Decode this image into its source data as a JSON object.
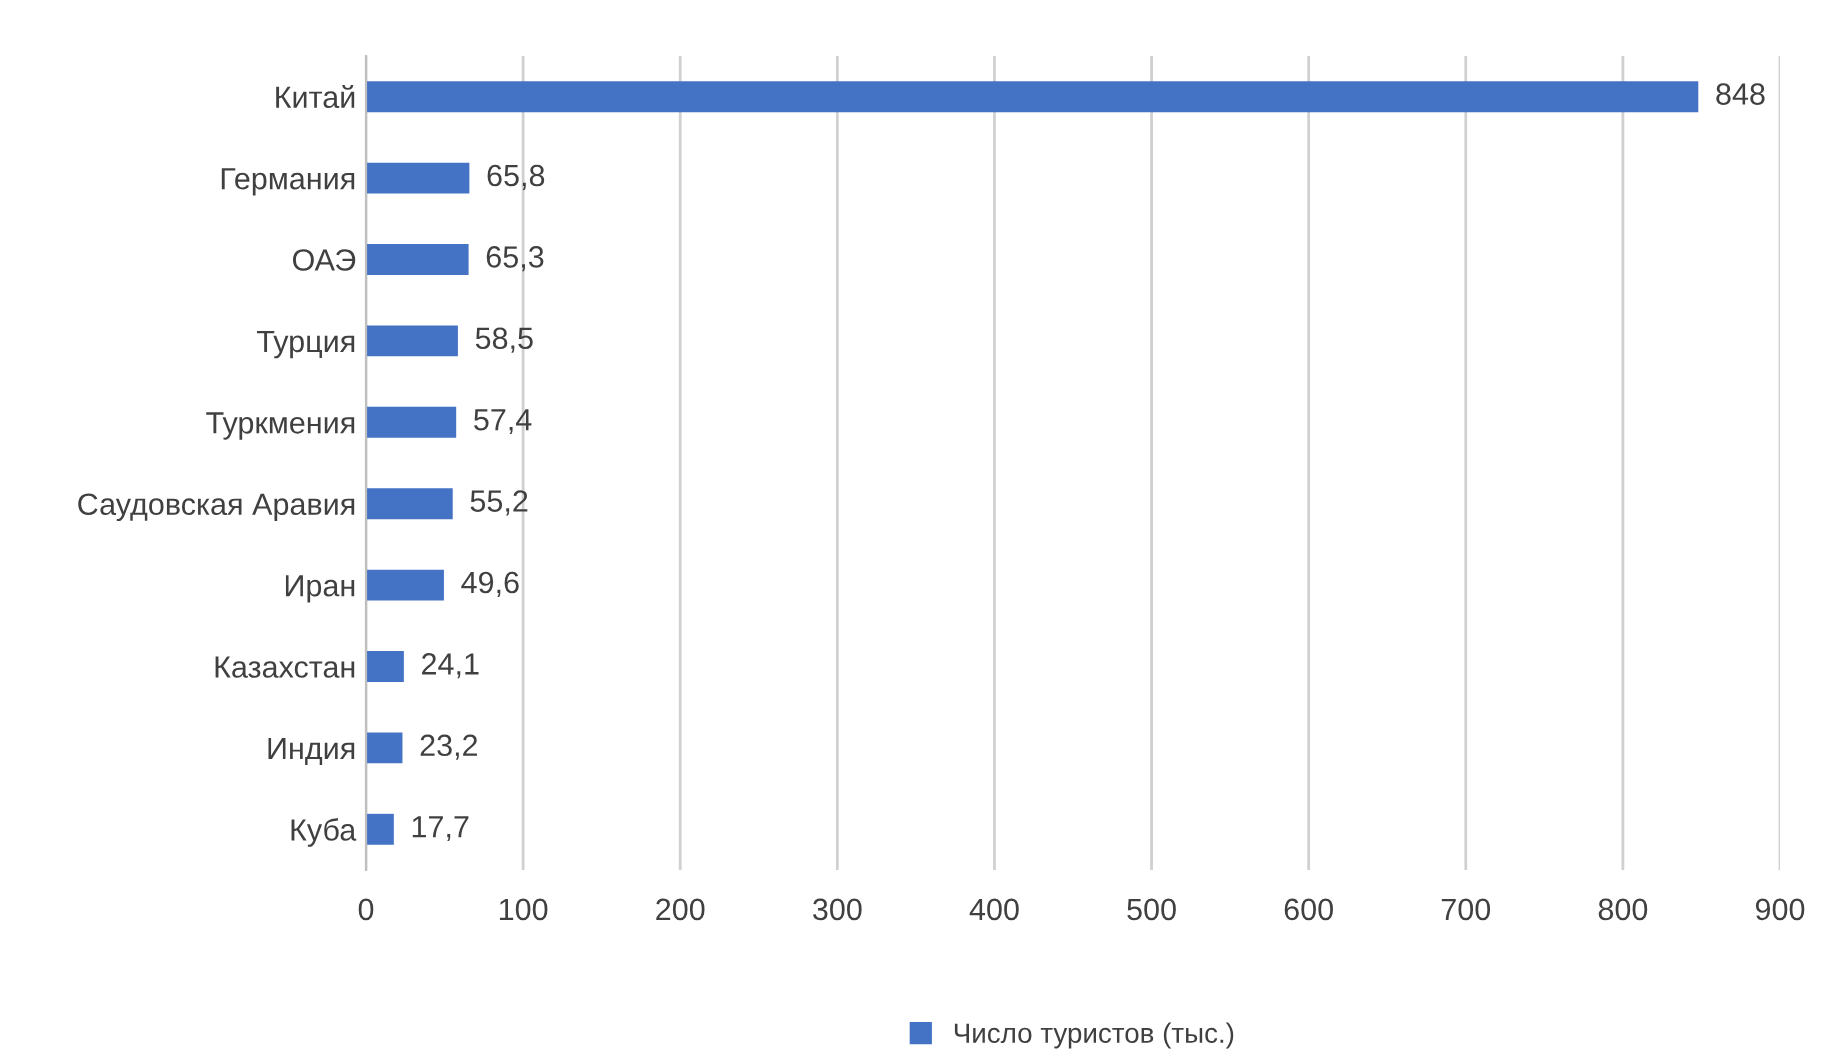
{
  "chart_data": {
    "type": "bar",
    "orientation": "horizontal",
    "categories": [
      "Китай",
      "Германия",
      "ОАЭ",
      "Турция",
      "Туркмения",
      "Саудовская Аравия",
      "Иран",
      "Казахстан",
      "Индия",
      "Куба"
    ],
    "series": [
      {
        "name": "Число туристов (тыс.)",
        "color": "#4472c4",
        "values": [
          848,
          65.8,
          65.3,
          58.5,
          57.4,
          55.2,
          49.6,
          24.1,
          23.2,
          17.7
        ]
      }
    ],
    "value_labels": [
      "848",
      "65,8",
      "65,3",
      "58,5",
      "57,4",
      "55,2",
      "49,6",
      "24,1",
      "23,2",
      "17,7"
    ],
    "xlim": [
      0,
      900
    ],
    "xticks": [
      0,
      100,
      200,
      300,
      400,
      500,
      600,
      700,
      800,
      900
    ],
    "grid": "x",
    "legend": "bottom"
  }
}
